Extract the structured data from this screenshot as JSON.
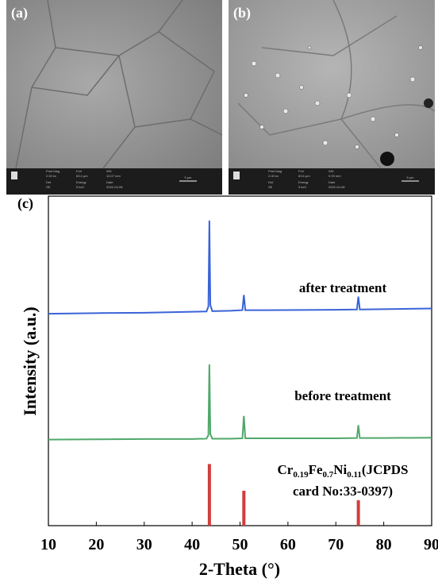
{
  "panels": [
    {
      "label": "(a)",
      "scale_bar": "5 μm",
      "info": [
        {
          "label": "Print Mag",
          "value": "2.00 kx"
        },
        {
          "label": "FoV",
          "value": "63.4 μm"
        },
        {
          "label": "WD",
          "value": "10.07 mm"
        },
        {
          "label": "Det",
          "value": "SE"
        },
        {
          "label": "Energy",
          "value": "5 keV"
        },
        {
          "label": "Date",
          "value": "2022-04-08"
        }
      ]
    },
    {
      "label": "(b)",
      "scale_bar": "5 μm",
      "info": [
        {
          "label": "Print Mag",
          "value": "2.00 kx"
        },
        {
          "label": "FoV",
          "value": "63.6 μm"
        },
        {
          "label": "WD",
          "value": "9.93 mm"
        },
        {
          "label": "Det",
          "value": "SE"
        },
        {
          "label": "Energy",
          "value": "5 keV"
        },
        {
          "label": "Date",
          "value": "2022-04-08"
        }
      ]
    }
  ],
  "chart_data": {
    "type": "line",
    "panel_label": "(c)",
    "x_label": "2-Theta (°)",
    "y_label": "Intensity (a.u.)",
    "xlim": [
      10,
      90
    ],
    "ylim": [
      0,
      100
    ],
    "xticks": [
      10,
      20,
      30,
      40,
      50,
      60,
      70,
      80,
      90
    ],
    "x": [
      10,
      20,
      30,
      40,
      43,
      43.4,
      43.6,
      43.8,
      44.2,
      48,
      50.5,
      50.8,
      51.1,
      55,
      70,
      74.4,
      74.7,
      75,
      80,
      90
    ],
    "series": [
      {
        "name": "after treatment",
        "color": "#3a63d8",
        "values": [
          64.3,
          64.5,
          64.6,
          64.9,
          65.0,
          66.5,
          92.6,
          67.0,
          65.1,
          65.2,
          65.4,
          70.0,
          65.4,
          65.4,
          65.5,
          65.6,
          69.5,
          65.6,
          65.7,
          65.9
        ]
      },
      {
        "name": "before treatment",
        "color": "#4fa86a",
        "values": [
          26.1,
          26.2,
          26.3,
          26.3,
          26.4,
          27.5,
          48.9,
          27.8,
          26.4,
          26.4,
          26.5,
          33.3,
          26.5,
          26.5,
          26.5,
          26.6,
          30.5,
          26.6,
          26.6,
          26.7
        ]
      }
    ],
    "reference": {
      "color": "#d33c3c",
      "x": [
        43.6,
        50.8,
        74.7
      ],
      "values": [
        18.7,
        10.6,
        7.7
      ],
      "label_line1": [
        "Cr",
        "0.19",
        "Fe",
        "0.7",
        "Ni",
        "0.11",
        "(JCPDS"
      ],
      "label_line2": "card No:33-0397)"
    }
  }
}
